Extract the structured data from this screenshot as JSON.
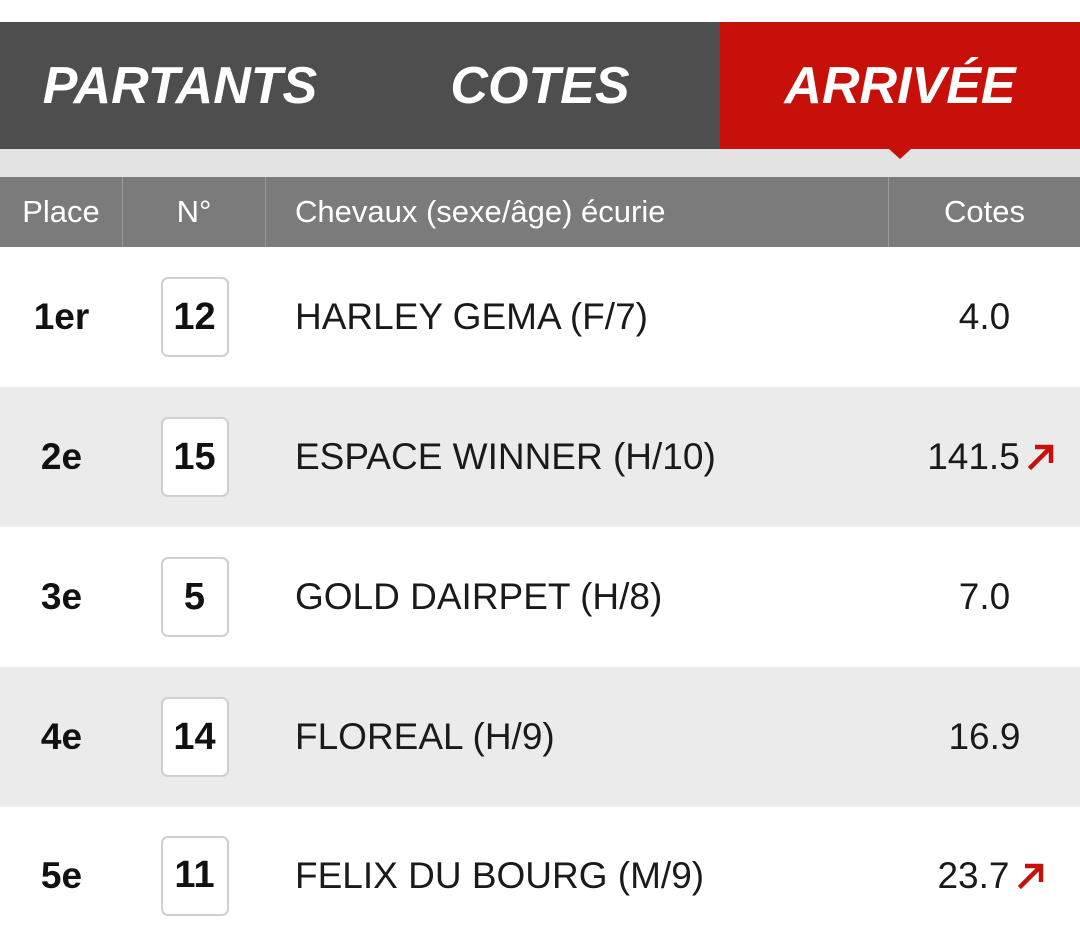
{
  "tabs": [
    {
      "label": "PARTANTS",
      "active": false
    },
    {
      "label": "COTES",
      "active": false
    },
    {
      "label": "ARRIVÉE",
      "active": true
    }
  ],
  "table": {
    "headers": {
      "place": "Place",
      "num": "N°",
      "horse": "Chevaux (sexe/âge) écurie",
      "cote": "Cotes"
    },
    "rows": [
      {
        "place": "1er",
        "num": "12",
        "horse": "HARLEY GEMA (F/7)",
        "cote": "4.0",
        "trend": null
      },
      {
        "place": "2e",
        "num": "15",
        "horse": "ESPACE WINNER (H/10)",
        "cote": "141.5",
        "trend": "up-arrow-icon"
      },
      {
        "place": "3e",
        "num": "5",
        "horse": "GOLD DAIRPET (H/8)",
        "cote": "7.0",
        "trend": null
      },
      {
        "place": "4e",
        "num": "14",
        "horse": "FLOREAL (H/9)",
        "cote": "16.9",
        "trend": null
      },
      {
        "place": "5e",
        "num": "11",
        "horse": "FELIX DU BOURG (M/9)",
        "cote": "23.7",
        "trend": "up-arrow-icon"
      }
    ]
  },
  "colors": {
    "tab_bar": "#4e4e4e",
    "tab_active": "#c8100b",
    "header_bg": "#7b7b7b",
    "row_alt": "#ebebeb",
    "trend_up": "#c8100b"
  }
}
